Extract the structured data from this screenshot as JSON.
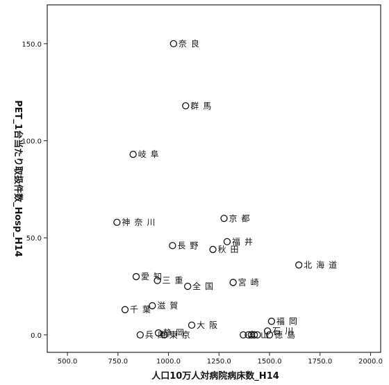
{
  "chart_data": {
    "type": "scatter",
    "xlabel": "人口10万人対病院病床数_H14",
    "ylabel": "PET_1台当たり取扱件数_Hosp_H14",
    "xlim": [
      400,
      2050
    ],
    "ylim": [
      -9,
      170
    ],
    "xticks": [
      500,
      750,
      1000,
      1250,
      1500,
      1750,
      2000
    ],
    "xtick_labels": [
      "500.0",
      "750.0",
      "1000.0",
      "1250.0",
      "1500.0",
      "1750.0",
      "2000.0"
    ],
    "yticks": [
      0,
      50,
      100,
      150
    ],
    "ytick_labels": [
      "0.0",
      "50.0",
      "100.0",
      "150.0"
    ],
    "grid": false,
    "points": [
      {
        "label": "奈良",
        "x": 1025,
        "y": 150
      },
      {
        "label": "群馬",
        "x": 1085,
        "y": 118
      },
      {
        "label": "岐阜",
        "x": 825,
        "y": 93
      },
      {
        "label": "神奈川",
        "x": 745,
        "y": 58
      },
      {
        "label": "京都",
        "x": 1275,
        "y": 60
      },
      {
        "label": "福井",
        "x": 1290,
        "y": 48
      },
      {
        "label": "長野",
        "x": 1020,
        "y": 46
      },
      {
        "label": "秋田",
        "x": 1220,
        "y": 44
      },
      {
        "label": "北海道",
        "x": 1645,
        "y": 36
      },
      {
        "label": "愛知",
        "x": 840,
        "y": 30
      },
      {
        "label": "三重",
        "x": 945,
        "y": 28
      },
      {
        "label": "全国",
        "x": 1095,
        "y": 25
      },
      {
        "label": "宮崎",
        "x": 1320,
        "y": 27
      },
      {
        "label": "千葉",
        "x": 785,
        "y": 13
      },
      {
        "label": "滋賀",
        "x": 920,
        "y": 15
      },
      {
        "label": "福岡",
        "x": 1510,
        "y": 7
      },
      {
        "label": "大阪",
        "x": 1115,
        "y": 5
      },
      {
        "label": "石川",
        "x": 1490,
        "y": 2
      },
      {
        "label": "静岡",
        "x": 950,
        "y": 1
      },
      {
        "label": "兵庫",
        "x": 860,
        "y": 0
      },
      {
        "label": "東京",
        "x": 980,
        "y": 0
      },
      {
        "label": "富山",
        "x": 1370,
        "y": 0
      },
      {
        "label": "徳島",
        "x": 1500,
        "y": 0
      },
      {
        "label": "",
        "x": 1395,
        "y": 0
      },
      {
        "label": "",
        "x": 1410,
        "y": 0
      },
      {
        "label": "",
        "x": 1425,
        "y": 0
      },
      {
        "label": "",
        "x": 1440,
        "y": 0
      }
    ]
  }
}
